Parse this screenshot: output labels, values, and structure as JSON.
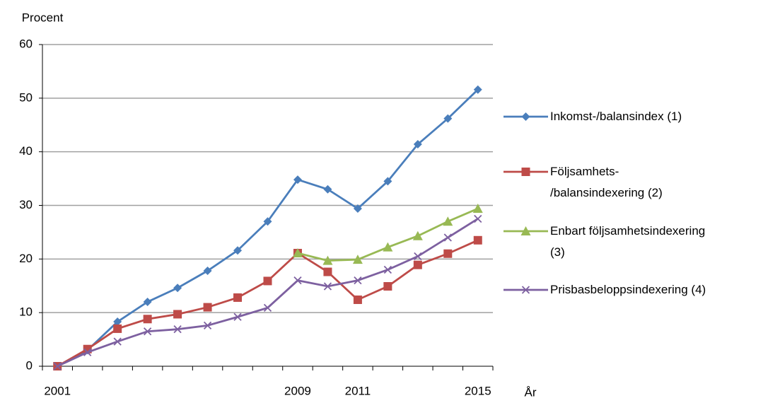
{
  "chart_data": {
    "type": "line",
    "y_label": "Procent",
    "x_label": "År",
    "categories": [
      "2001",
      null,
      null,
      null,
      null,
      null,
      null,
      null,
      "2009",
      null,
      "2011",
      null,
      null,
      null,
      "2015"
    ],
    "ylim": [
      0,
      60
    ],
    "yticks": [
      0,
      10,
      20,
      30,
      40,
      50,
      60
    ],
    "grid": true,
    "legend": "right",
    "series": [
      {
        "name": "Inkomst-/balansindex (1)",
        "color": "#4a7ebb",
        "marker": "diamond",
        "values": [
          0,
          3,
          8.3,
          12,
          14.6,
          17.8,
          21.6,
          27,
          34.8,
          33,
          29.4,
          34.5,
          41.4,
          46.2,
          51.6
        ]
      },
      {
        "name": "Följsamhets-\n/balansindexering (2)",
        "color": "#be4b48",
        "marker": "square",
        "values": [
          0,
          3.2,
          7,
          8.8,
          9.7,
          11,
          12.8,
          15.9,
          21.1,
          17.6,
          12.4,
          14.9,
          18.9,
          21,
          23.5
        ]
      },
      {
        "name": "Enbart följsamhetsindexering\n(3)",
        "color": "#98b954",
        "marker": "triangle",
        "values": [
          null,
          null,
          null,
          null,
          null,
          null,
          null,
          null,
          21.1,
          19.7,
          19.9,
          22.2,
          24.3,
          27,
          29.4
        ]
      },
      {
        "name": "Prisbasbeloppsindexering (4)",
        "color": "#7d60a0",
        "marker": "x",
        "values": [
          0,
          2.6,
          4.6,
          6.5,
          6.9,
          7.6,
          9.2,
          10.9,
          16,
          14.9,
          16,
          18,
          20.5,
          24,
          27.5
        ]
      }
    ]
  }
}
